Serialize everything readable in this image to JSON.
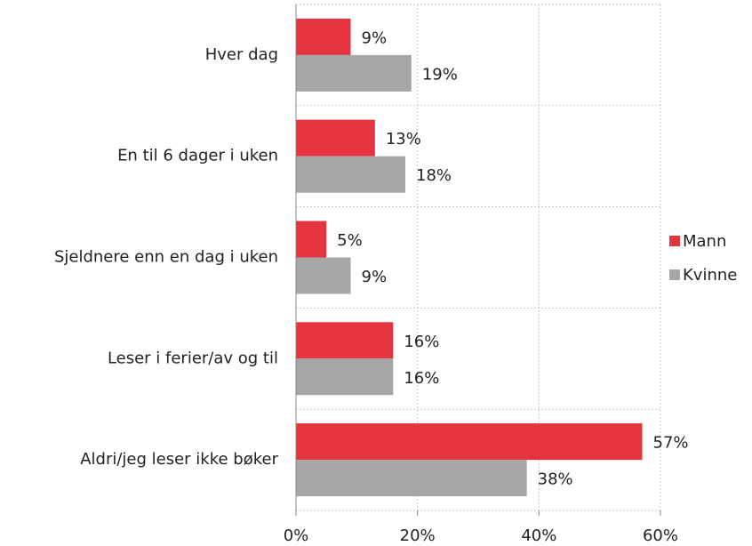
{
  "chart_data": {
    "type": "barh",
    "categories": [
      "Hver dag",
      "En til 6 dager i uken",
      "Sjeldnere enn en dag i uken",
      "Leser i ferier/av og til",
      "Aldri/jeg leser ikke bøker"
    ],
    "series": [
      {
        "name": "Mann",
        "color": "#e3343f",
        "values": [
          9,
          13,
          5,
          16,
          57
        ],
        "value_labels": [
          "9%",
          "13%",
          "5%",
          "16%",
          "57%"
        ]
      },
      {
        "name": "Kvinne",
        "color": "#a6a6a6",
        "values": [
          19,
          18,
          9,
          16,
          38
        ],
        "value_labels": [
          "19%",
          "18%",
          "9%",
          "16%",
          "38%"
        ]
      }
    ],
    "xlim": [
      0,
      60
    ],
    "xticks": [
      {
        "value": 0,
        "label": "0%"
      },
      {
        "value": 20,
        "label": "20%"
      },
      {
        "value": 40,
        "label": "40%"
      },
      {
        "value": 60,
        "label": "60%"
      }
    ],
    "grid": true,
    "legend": "right"
  }
}
